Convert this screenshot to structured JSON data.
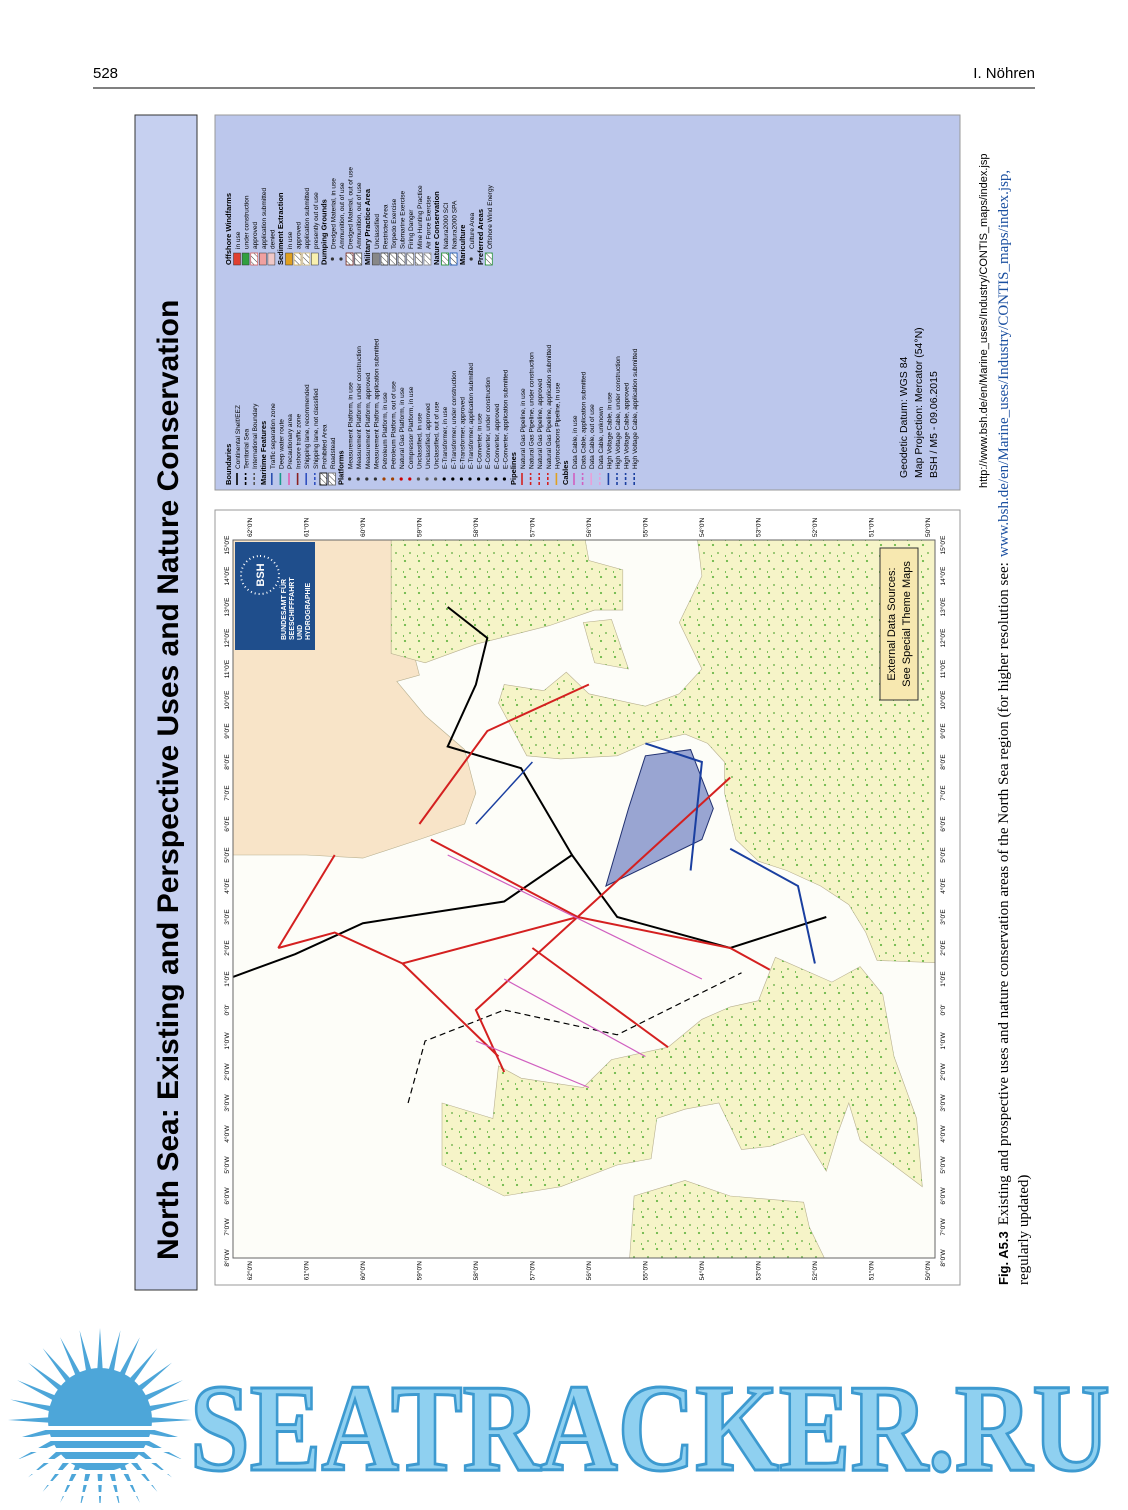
{
  "header": {
    "page_number": "528",
    "author": "I. Nöhren"
  },
  "map": {
    "title": "North Sea: Existing and Perspective Uses and Nature Conservation",
    "logo": {
      "abbr": "BSH",
      "name_lines": [
        "BUNDESAMT FÜR",
        "SEESCHIFFFAHRT",
        "UND",
        "HYDROGRAPHIE"
      ]
    },
    "data_sources": [
      "External Data Sources:",
      "See Special Theme Maps"
    ],
    "lat_labels": [
      "62°0'N",
      "61°0'N",
      "60°0'N",
      "59°0'N",
      "58°0'N",
      "57°0'N",
      "56°0'N",
      "55°0'N",
      "54°0'N",
      "53°0'N",
      "52°0'N",
      "51°0'N",
      "50°0'N"
    ],
    "lon_labels": [
      "8°0'W",
      "7°0'W",
      "6°0'W",
      "5°0'W",
      "4°0'W",
      "3°0'W",
      "2°0'W",
      "1°0'W",
      "0°0'",
      "1°0'E",
      "2°0'E",
      "3°0'E",
      "4°0'E",
      "5°0'E",
      "6°0'E",
      "7°0'E",
      "8°0'E",
      "9°0'E",
      "10°0'E",
      "11°0'E",
      "12°0'E",
      "13°0'E",
      "14°0'E",
      "15°0'E"
    ],
    "legend": {
      "columns": [
        [
          {
            "heading": "Boundaries",
            "items": [
              {
                "label": "Continental Shelf/EEZ",
                "color": "#000",
                "style": "line"
              },
              {
                "label": "Territorial Sea",
                "color": "#000",
                "style": "dash"
              },
              {
                "label": "International Boundary",
                "color": "#555",
                "style": "dash"
              }
            ]
          },
          {
            "heading": "Maritime Features",
            "items": [
              {
                "label": "Traffic separation zone",
                "color": "#2b4fb0",
                "style": "line"
              },
              {
                "label": "Deep water route",
                "color": "#1a9a8a",
                "style": "line"
              },
              {
                "label": "Precautionary area",
                "color": "#e060b0",
                "style": "line"
              },
              {
                "label": "Inshore traffic zone",
                "color": "#8a2020",
                "style": "line"
              },
              {
                "label": "Shipping lane, recommended",
                "color": "#3050c0",
                "style": "line"
              },
              {
                "label": "Shipping lane, not classified",
                "color": "#3050c0",
                "style": "dash"
              },
              {
                "label": "Prohibited Area",
                "color": "#000",
                "style": "hatch"
              },
              {
                "label": "Roadstead",
                "color": "#777",
                "style": "hatch"
              }
            ]
          },
          {
            "heading": "Platforms",
            "items": [
              {
                "label": "Measurement Platform, in use",
                "color": "#333",
                "style": "point"
              },
              {
                "label": "Measurement Platform, under construction",
                "color": "#333",
                "style": "point"
              },
              {
                "label": "Measurement Platform, approved",
                "color": "#333",
                "style": "point"
              },
              {
                "label": "Measurement Platform, application submitted",
                "color": "#333",
                "style": "point"
              },
              {
                "label": "Petroleum Platform, in use",
                "color": "#a04000",
                "style": "point"
              },
              {
                "label": "Petroleum Platform, out of use",
                "color": "#a04000",
                "style": "point"
              },
              {
                "label": "Natural Gas Platform, in use",
                "color": "#c00",
                "style": "point"
              },
              {
                "label": "Compressor Platform, in use",
                "color": "#c00",
                "style": "point"
              },
              {
                "label": "Unclassified, in use",
                "color": "#555",
                "style": "point"
              },
              {
                "label": "Unclassified, approved",
                "color": "#555",
                "style": "point"
              },
              {
                "label": "Unclassified, out of use",
                "color": "#555",
                "style": "point"
              },
              {
                "label": "E-Transformer, in use",
                "color": "#000",
                "style": "point"
              },
              {
                "label": "E-Transformer, under construction",
                "color": "#000",
                "style": "point"
              },
              {
                "label": "E-Transformer, approved",
                "color": "#000",
                "style": "point"
              },
              {
                "label": "E-Transformer, application submitted",
                "color": "#000",
                "style": "point"
              },
              {
                "label": "E-Converter, in use",
                "color": "#000",
                "style": "point"
              },
              {
                "label": "E-Converter, under construction",
                "color": "#000",
                "style": "point"
              },
              {
                "label": "E-Converter, approved",
                "color": "#000",
                "style": "point"
              },
              {
                "label": "E-Converter, application submitted",
                "color": "#000",
                "style": "point"
              }
            ]
          },
          {
            "heading": "Pipelines",
            "items": [
              {
                "label": "Natural Gas Pipeline, in use",
                "color": "#d42020",
                "style": "line"
              },
              {
                "label": "Natural Gas Pipeline, under construction",
                "color": "#d42020",
                "style": "dash"
              },
              {
                "label": "Natural Gas Pipeline, approved",
                "color": "#d42020",
                "style": "dash"
              },
              {
                "label": "Natural Gas Pipeline, application submitted",
                "color": "#d42020",
                "style": "dash"
              },
              {
                "label": "Hydrocarbons Pipeline, in use",
                "color": "#e0a020",
                "style": "line"
              }
            ]
          },
          {
            "heading": "Cables",
            "items": [
              {
                "label": "Data Cable, in use",
                "color": "#d060c0",
                "style": "line"
              },
              {
                "label": "Data Cable, application submitted",
                "color": "#d060c0",
                "style": "dash"
              },
              {
                "label": "Data Cable, out of use",
                "color": "#e8a0d8",
                "style": "line"
              },
              {
                "label": "Data Cable, unknown",
                "color": "#e8a0d8",
                "style": "dash"
              },
              {
                "label": "High Voltage Cable, in use",
                "color": "#1a3fa0",
                "style": "line"
              },
              {
                "label": "High Voltage Cable, under construction",
                "color": "#1a3fa0",
                "style": "dash"
              },
              {
                "label": "High Voltage Cable, approved",
                "color": "#1a3fa0",
                "style": "dash"
              },
              {
                "label": "High Voltage Cable, application submitted",
                "color": "#1a3fa0",
                "style": "dash"
              }
            ]
          }
        ],
        [
          {
            "heading": "Offshore Windfarms",
            "items": [
              {
                "label": "in use",
                "color": "#e04030",
                "style": "fill"
              },
              {
                "label": "under construction",
                "color": "#30a040",
                "style": "fill"
              },
              {
                "label": "approved",
                "color": "#e07070",
                "style": "hatch"
              },
              {
                "label": "application submitted",
                "color": "#f0a0a0",
                "style": "fill"
              },
              {
                "label": "denied",
                "color": "#f0c8c8",
                "style": "fill"
              }
            ]
          },
          {
            "heading": "Sediment Extraction",
            "items": [
              {
                "label": "in use",
                "color": "#e0a020",
                "style": "fill"
              },
              {
                "label": "approved",
                "color": "#e8c060",
                "style": "hatch"
              },
              {
                "label": "application submitted",
                "color": "#e8d090",
                "style": "hatch"
              },
              {
                "label": "presently out of use",
                "color": "#f8f0b0",
                "style": "fill"
              }
            ]
          },
          {
            "heading": "Dumping Grounds",
            "items": [
              {
                "label": "Dredged Material, in use",
                "color": "#333",
                "style": "point"
              },
              {
                "label": "Ammunition, out of use",
                "color": "#333",
                "style": "point"
              },
              {
                "label": "Dredged Material, out of use",
                "color": "#803020",
                "style": "hatch"
              },
              {
                "label": "Ammunition, out of use",
                "color": "#555",
                "style": "hatch"
              }
            ]
          },
          {
            "heading": "Military Practice Area",
            "items": [
              {
                "label": "Unclassified",
                "color": "#888",
                "style": "fill"
              },
              {
                "label": "Restricted Area",
                "color": "#444",
                "style": "hatch"
              },
              {
                "label": "Torpedo Exercise",
                "color": "#666",
                "style": "hatch"
              },
              {
                "label": "Submarine Exercise",
                "color": "#666",
                "style": "hatch"
              },
              {
                "label": "Firing Danger",
                "color": "#777",
                "style": "hatch"
              },
              {
                "label": "Mine Hunting Practice",
                "color": "#777",
                "style": "hatch"
              },
              {
                "label": "Air Force Exercise",
                "color": "#999",
                "style": "hatch"
              }
            ]
          },
          {
            "heading": "Nature Conservation",
            "items": [
              {
                "label": "Natura2000 SCI",
                "color": "#30a040",
                "style": "hatch"
              },
              {
                "label": "Natura2000 SPA",
                "color": "#2060c0",
                "style": "hatch"
              }
            ]
          },
          {
            "heading": "Mariculture",
            "items": [
              {
                "label": "Culture Area",
                "color": "#333",
                "style": "point"
              }
            ]
          },
          {
            "heading": "Preferred Areas",
            "items": [
              {
                "label": "Offshore Wind Energy",
                "color": "#30a040",
                "style": "hatch"
              }
            ]
          }
        ]
      ],
      "footer": [
        "Geodetic Datum: WGS 84",
        "Map Projection: Mercator (54°N)",
        "BSH / M5 - 09.06.2015"
      ]
    },
    "url": "http://www.bsh.de/en/Marine_uses/Industry/CONTIS_maps/index.jsp"
  },
  "caption": {
    "label": "Fig. A5.3",
    "text": "Existing and prospective uses and nature conservation areas of the North Sea region (for higher resolution see:",
    "link": "www.bsh.de/en/Marine_uses/Industry/CONTIS_maps/index.jsp,",
    "end": "regularly updated)"
  },
  "watermark": "SEATRACKER.RU"
}
